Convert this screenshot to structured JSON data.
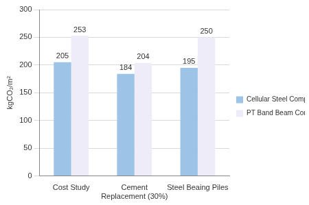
{
  "chart_data": {
    "type": "bar",
    "y_label": "kgCO₂/m²",
    "categories": [
      "Cost Study",
      "Cement Replacement (30%)",
      "Steel Beaing Piles"
    ],
    "series": [
      {
        "name": "Cellular Steel Composite",
        "color": "#9dc3e6",
        "values": [
          205,
          184,
          195
        ]
      },
      {
        "name": "PT Band Beam Concrete",
        "color": "#eeecf8",
        "values": [
          253,
          204,
          250
        ]
      }
    ],
    "ylim": [
      0,
      300
    ],
    "yticks": [
      0,
      50,
      100,
      150,
      200,
      250,
      300
    ],
    "grid": true,
    "legend": "right",
    "data_labels": true
  }
}
